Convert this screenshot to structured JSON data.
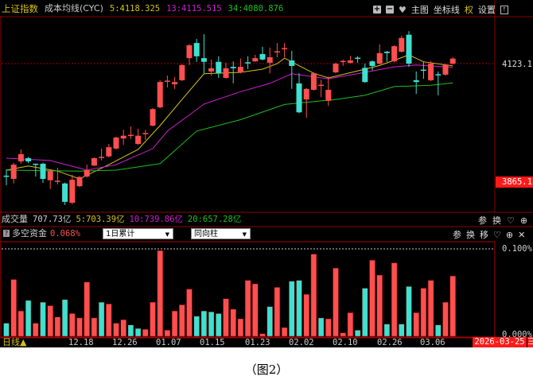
{
  "header": {
    "symbol": "上证指数",
    "indicator": "成本均线(CYC)",
    "ma5": "5:4118.325",
    "ma13": "13:4115.515",
    "ma34": "34:4080.876",
    "main_chart_label": "主图",
    "crosshair_label": "坐标线",
    "rights_label": "权",
    "settings_label": "设置"
  },
  "price_axis": {
    "ref_label": "4123.1",
    "badge_label": "3865.1"
  },
  "volume": {
    "label": "成交量",
    "total": "707.73亿",
    "ma5": "5:703.39亿",
    "ma10": "10:739.86亿",
    "ma20": "20:657.28亿",
    "param_label": "参",
    "switch_label": "换"
  },
  "indicator": {
    "name": "多空资金",
    "value": "0.068%",
    "select_period": "1日累计",
    "select_style": "同向柱",
    "param_label": "参",
    "switch_label": "换",
    "move_label": "移",
    "axis_top": "0.100%",
    "axis_bottom": "0.000%"
  },
  "x_axis": {
    "period": "日线▲",
    "labels": [
      "12.18",
      "12.26",
      "01.07",
      "01.15",
      "01.23",
      "02.02",
      "02.10",
      "02.26",
      "03.06"
    ],
    "date": "2026-03-25",
    "weekday": "三"
  },
  "caption": "（图2）",
  "colors": {
    "up": "#ff4f4f",
    "down": "#3fe0cf",
    "ma5": "#d4c21a",
    "ma13": "#d21fd2",
    "ma34": "#1fbf1f",
    "frame": "#8b0000"
  },
  "chart_data": [
    {
      "type": "candlestick",
      "ohlc_order": [
        "open",
        "high",
        "low",
        "close"
      ],
      "ylim": [
        3800,
        4200
      ],
      "candles": [
        [
          3879,
          3893,
          3858,
          3877
        ],
        [
          3872,
          3907,
          3862,
          3903
        ],
        [
          3910,
          3936,
          3905,
          3926
        ],
        [
          3917,
          3920,
          3906,
          3910
        ],
        [
          3905,
          3905,
          3877,
          3903
        ],
        [
          3905,
          3907,
          3863,
          3872
        ],
        [
          3869,
          3891,
          3850,
          3889
        ],
        [
          3866,
          3896,
          3860,
          3868
        ],
        [
          3862,
          3864,
          3815,
          3822
        ],
        [
          3820,
          3881,
          3817,
          3870
        ],
        [
          3856,
          3878,
          3854,
          3876
        ],
        [
          3877,
          3903,
          3875,
          3891
        ],
        [
          3901,
          3919,
          3900,
          3917
        ],
        [
          3918,
          3938,
          3912,
          3920
        ],
        [
          3921,
          3948,
          3919,
          3941
        ],
        [
          3938,
          3964,
          3936,
          3962
        ],
        [
          3960,
          3979,
          3946,
          3966
        ],
        [
          3966,
          3986,
          3959,
          3968
        ],
        [
          3948,
          3981,
          3946,
          3966
        ],
        [
          3970,
          3979,
          3957,
          3972
        ],
        [
          3988,
          4026,
          3986,
          4024
        ],
        [
          4028,
          4087,
          4026,
          4083
        ],
        [
          4084,
          4097,
          4071,
          4086
        ],
        [
          4078,
          4094,
          4068,
          4083
        ],
        [
          4087,
          4122,
          4085,
          4120
        ],
        [
          4135,
          4166,
          4120,
          4163
        ],
        [
          4168,
          4177,
          4127,
          4139
        ],
        [
          4135,
          4187,
          4102,
          4127
        ],
        [
          4106,
          4132,
          4097,
          4113
        ],
        [
          4127,
          4139,
          4092,
          4102
        ],
        [
          4092,
          4125,
          4090,
          4113
        ],
        [
          4116,
          4128,
          4080,
          4113
        ],
        [
          4104,
          4134,
          4102,
          4116
        ],
        [
          4126,
          4139,
          4111,
          4124
        ],
        [
          4128,
          4142,
          4127,
          4135
        ],
        [
          4144,
          4160,
          4130,
          4132
        ],
        [
          4125,
          4158,
          4102,
          4137
        ],
        [
          4148,
          4168,
          4137,
          4150
        ],
        [
          4155,
          4168,
          4137,
          4157
        ],
        [
          4130,
          4151,
          4068,
          4118
        ],
        [
          4080,
          4102,
          4015,
          4017
        ],
        [
          4045,
          4070,
          4005,
          4068
        ],
        [
          4066,
          4104,
          4064,
          4102
        ],
        [
          4075,
          4088,
          4050,
          4077
        ],
        [
          4042,
          4095,
          4031,
          4066
        ],
        [
          4104,
          4125,
          4102,
          4123
        ],
        [
          4127,
          4132,
          4118,
          4129
        ],
        [
          4125,
          4140,
          4123,
          4130
        ],
        [
          4136,
          4139,
          4125,
          4134
        ],
        [
          4114,
          4123,
          4081,
          4083
        ],
        [
          4128,
          4130,
          4108,
          4118
        ],
        [
          4123,
          4165,
          4121,
          4146
        ],
        [
          4149,
          4151,
          4127,
          4146
        ],
        [
          4128,
          4163,
          4126,
          4161
        ],
        [
          4149,
          4184,
          4147,
          4179
        ],
        [
          4186,
          4194,
          4116,
          4123
        ],
        [
          4087,
          4106,
          4057,
          4083
        ],
        [
          4110,
          4127,
          4090,
          4108
        ],
        [
          4087,
          4128,
          4085,
          4123
        ],
        [
          4100,
          4106,
          4054,
          4098
        ],
        [
          4099,
          4123,
          4097,
          4121
        ],
        [
          4123,
          4137,
          4121,
          4134
        ]
      ],
      "moving_averages": [
        {
          "name": "5",
          "points": [
            [
              0,
              3891
            ],
            [
              3,
              3900
            ],
            [
              7,
              3889
            ],
            [
              10,
              3872
            ],
            [
              14,
              3903
            ],
            [
              18,
              3936
            ],
            [
              21,
              3988
            ],
            [
              24,
              4045
            ],
            [
              27,
              4101
            ],
            [
              32,
              4104
            ],
            [
              35,
              4111
            ],
            [
              37,
              4123
            ],
            [
              38,
              4135
            ],
            [
              42,
              4102
            ],
            [
              44,
              4092
            ],
            [
              49,
              4111
            ],
            [
              51,
              4119
            ],
            [
              55,
              4142
            ],
            [
              57,
              4127
            ],
            [
              61,
              4118
            ]
          ]
        },
        {
          "name": "13",
          "points": [
            [
              0,
              3917
            ],
            [
              6,
              3912
            ],
            [
              11,
              3891
            ],
            [
              15,
              3903
            ],
            [
              20,
              3938
            ],
            [
              22,
              3976
            ],
            [
              27,
              4035
            ],
            [
              32,
              4062
            ],
            [
              36,
              4080
            ],
            [
              39,
              4101
            ],
            [
              44,
              4090
            ],
            [
              49,
              4104
            ],
            [
              53,
              4116
            ],
            [
              56,
              4120
            ],
            [
              61,
              4115
            ]
          ]
        },
        {
          "name": "34",
          "points": [
            [
              0,
              3891
            ],
            [
              10,
              3889
            ],
            [
              15,
              3891
            ],
            [
              21,
              3905
            ],
            [
              26,
              3976
            ],
            [
              32,
              4001
            ],
            [
              38,
              4034
            ],
            [
              45,
              4045
            ],
            [
              49,
              4054
            ],
            [
              53,
              4073
            ],
            [
              58,
              4076
            ],
            [
              61,
              4081
            ]
          ]
        }
      ]
    },
    {
      "type": "bar",
      "ylim": [
        0,
        0.1
      ],
      "unit": "%",
      "values": [
        0.015,
        0.065,
        0.029,
        0.041,
        0.015,
        0.039,
        0.035,
        0.022,
        0.042,
        0.026,
        0.021,
        0.062,
        0.021,
        0.039,
        0.037,
        0.015,
        0.019,
        0.013,
        0.009,
        0.008,
        0.039,
        0.098,
        0.007,
        0.029,
        0.036,
        0.054,
        0.023,
        0.029,
        0.028,
        0.026,
        0.043,
        0.031,
        0.02,
        0.064,
        0.06,
        0.003,
        0.034,
        0.056,
        0.01,
        0.063,
        0.064,
        0.048,
        0.094,
        0.021,
        0.02,
        0.078,
        0.004,
        0.027,
        0.007,
        0.055,
        0.087,
        0.07,
        0.014,
        0.084,
        0.014,
        0.057,
        0.027,
        0.055,
        0.064,
        0.013,
        0.039,
        0.069
      ],
      "bar_colors": [
        "down",
        "up",
        "up",
        "down",
        "up",
        "down",
        "up",
        "up",
        "down",
        "up",
        "up",
        "up",
        "up",
        "down",
        "up",
        "up",
        "up",
        "down",
        "down",
        "up",
        "up",
        "up",
        "up",
        "up",
        "up",
        "up",
        "down",
        "down",
        "down",
        "down",
        "up",
        "up",
        "up",
        "up",
        "up",
        "up",
        "down",
        "up",
        "up",
        "down",
        "down",
        "up",
        "up",
        "down",
        "up",
        "up",
        "up",
        "up",
        "down",
        "down",
        "up",
        "up",
        "down",
        "up",
        "down",
        "down",
        "up",
        "up",
        "up",
        "down",
        "up",
        "up"
      ]
    }
  ]
}
